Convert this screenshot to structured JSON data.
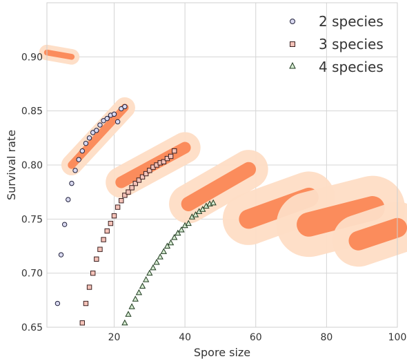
{
  "chart_data": {
    "type": "scatter",
    "xlabel": "Spore size",
    "ylabel": "Survival rate",
    "xlim": [
      1,
      100
    ],
    "ylim": [
      0.65,
      0.95
    ],
    "grid": true,
    "legend_position": "top-right",
    "xticks": [
      "20",
      "40",
      "60",
      "80",
      "100"
    ],
    "yticks": [
      "0.65",
      "0.70",
      "0.75",
      "0.80",
      "0.85",
      "0.90"
    ],
    "series": [
      {
        "name": "2 species",
        "marker": "circle",
        "fill": "#d9d9f0",
        "stroke": "#1f1f3a",
        "points": [
          [
            4,
            0.672
          ],
          [
            5,
            0.717
          ],
          [
            6,
            0.745
          ],
          [
            7,
            0.768
          ],
          [
            8,
            0.783
          ],
          [
            9,
            0.795
          ],
          [
            10,
            0.805
          ],
          [
            11,
            0.813
          ],
          [
            12,
            0.82
          ],
          [
            13,
            0.825
          ],
          [
            14,
            0.83
          ],
          [
            15,
            0.832
          ],
          [
            16,
            0.837
          ],
          [
            17,
            0.841
          ],
          [
            18,
            0.843
          ],
          [
            19,
            0.846
          ],
          [
            20,
            0.847
          ],
          [
            21,
            0.84
          ],
          [
            22,
            0.852
          ],
          [
            23,
            0.854
          ]
        ]
      },
      {
        "name": "3 species",
        "marker": "square",
        "fill": "#f4c2b8",
        "stroke": "#3a1f1f",
        "points": [
          [
            11,
            0.654
          ],
          [
            12,
            0.672
          ],
          [
            13,
            0.687
          ],
          [
            14,
            0.7
          ],
          [
            15,
            0.713
          ],
          [
            16,
            0.722
          ],
          [
            17,
            0.731
          ],
          [
            18,
            0.739
          ],
          [
            19,
            0.746
          ],
          [
            20,
            0.753
          ],
          [
            21,
            0.761
          ],
          [
            22,
            0.767
          ],
          [
            23,
            0.772
          ],
          [
            24,
            0.775
          ],
          [
            25,
            0.779
          ],
          [
            26,
            0.783
          ],
          [
            27,
            0.786
          ],
          [
            28,
            0.789
          ],
          [
            29,
            0.792
          ],
          [
            30,
            0.795
          ],
          [
            31,
            0.798
          ],
          [
            32,
            0.8
          ],
          [
            33,
            0.802
          ],
          [
            34,
            0.803
          ],
          [
            35,
            0.806
          ],
          [
            36,
            0.808
          ],
          [
            37,
            0.813
          ]
        ]
      },
      {
        "name": "4 species",
        "marker": "triangle",
        "fill": "#d6ecd2",
        "stroke": "#1f3a1f",
        "points": [
          [
            23,
            0.654
          ],
          [
            24,
            0.662
          ],
          [
            25,
            0.669
          ],
          [
            26,
            0.676
          ],
          [
            27,
            0.682
          ],
          [
            28,
            0.688
          ],
          [
            29,
            0.694
          ],
          [
            30,
            0.7
          ],
          [
            31,
            0.705
          ],
          [
            32,
            0.71
          ],
          [
            33,
            0.715
          ],
          [
            34,
            0.72
          ],
          [
            35,
            0.725
          ],
          [
            36,
            0.728
          ],
          [
            37,
            0.733
          ],
          [
            38,
            0.737
          ],
          [
            39,
            0.74
          ],
          [
            40,
            0.744
          ],
          [
            41,
            0.746
          ],
          [
            42,
            0.752
          ],
          [
            43,
            0.754
          ],
          [
            44,
            0.757
          ],
          [
            45,
            0.759
          ],
          [
            46,
            0.762
          ],
          [
            47,
            0.764
          ],
          [
            48,
            0.765
          ]
        ]
      }
    ],
    "density_clusters": {
      "colors": {
        "outer": "#fedec6",
        "inner": "#fb8c5c"
      },
      "regions": [
        {
          "x1": 1,
          "y1": 0.904,
          "x2": 8,
          "y2": 0.9,
          "spread": 0.006
        },
        {
          "x1": 8,
          "y1": 0.8,
          "x2": 23,
          "y2": 0.853,
          "spread": 0.008
        },
        {
          "x1": 22,
          "y1": 0.784,
          "x2": 40,
          "y2": 0.816,
          "spread": 0.012
        },
        {
          "x1": 41,
          "y1": 0.764,
          "x2": 58,
          "y2": 0.796,
          "spread": 0.015
        },
        {
          "x1": 58,
          "y1": 0.75,
          "x2": 75,
          "y2": 0.77,
          "spread": 0.02
        },
        {
          "x1": 75,
          "y1": 0.745,
          "x2": 93,
          "y2": 0.76,
          "spread": 0.025
        },
        {
          "x1": 89,
          "y1": 0.73,
          "x2": 100,
          "y2": 0.742,
          "spread": 0.02
        }
      ]
    }
  }
}
